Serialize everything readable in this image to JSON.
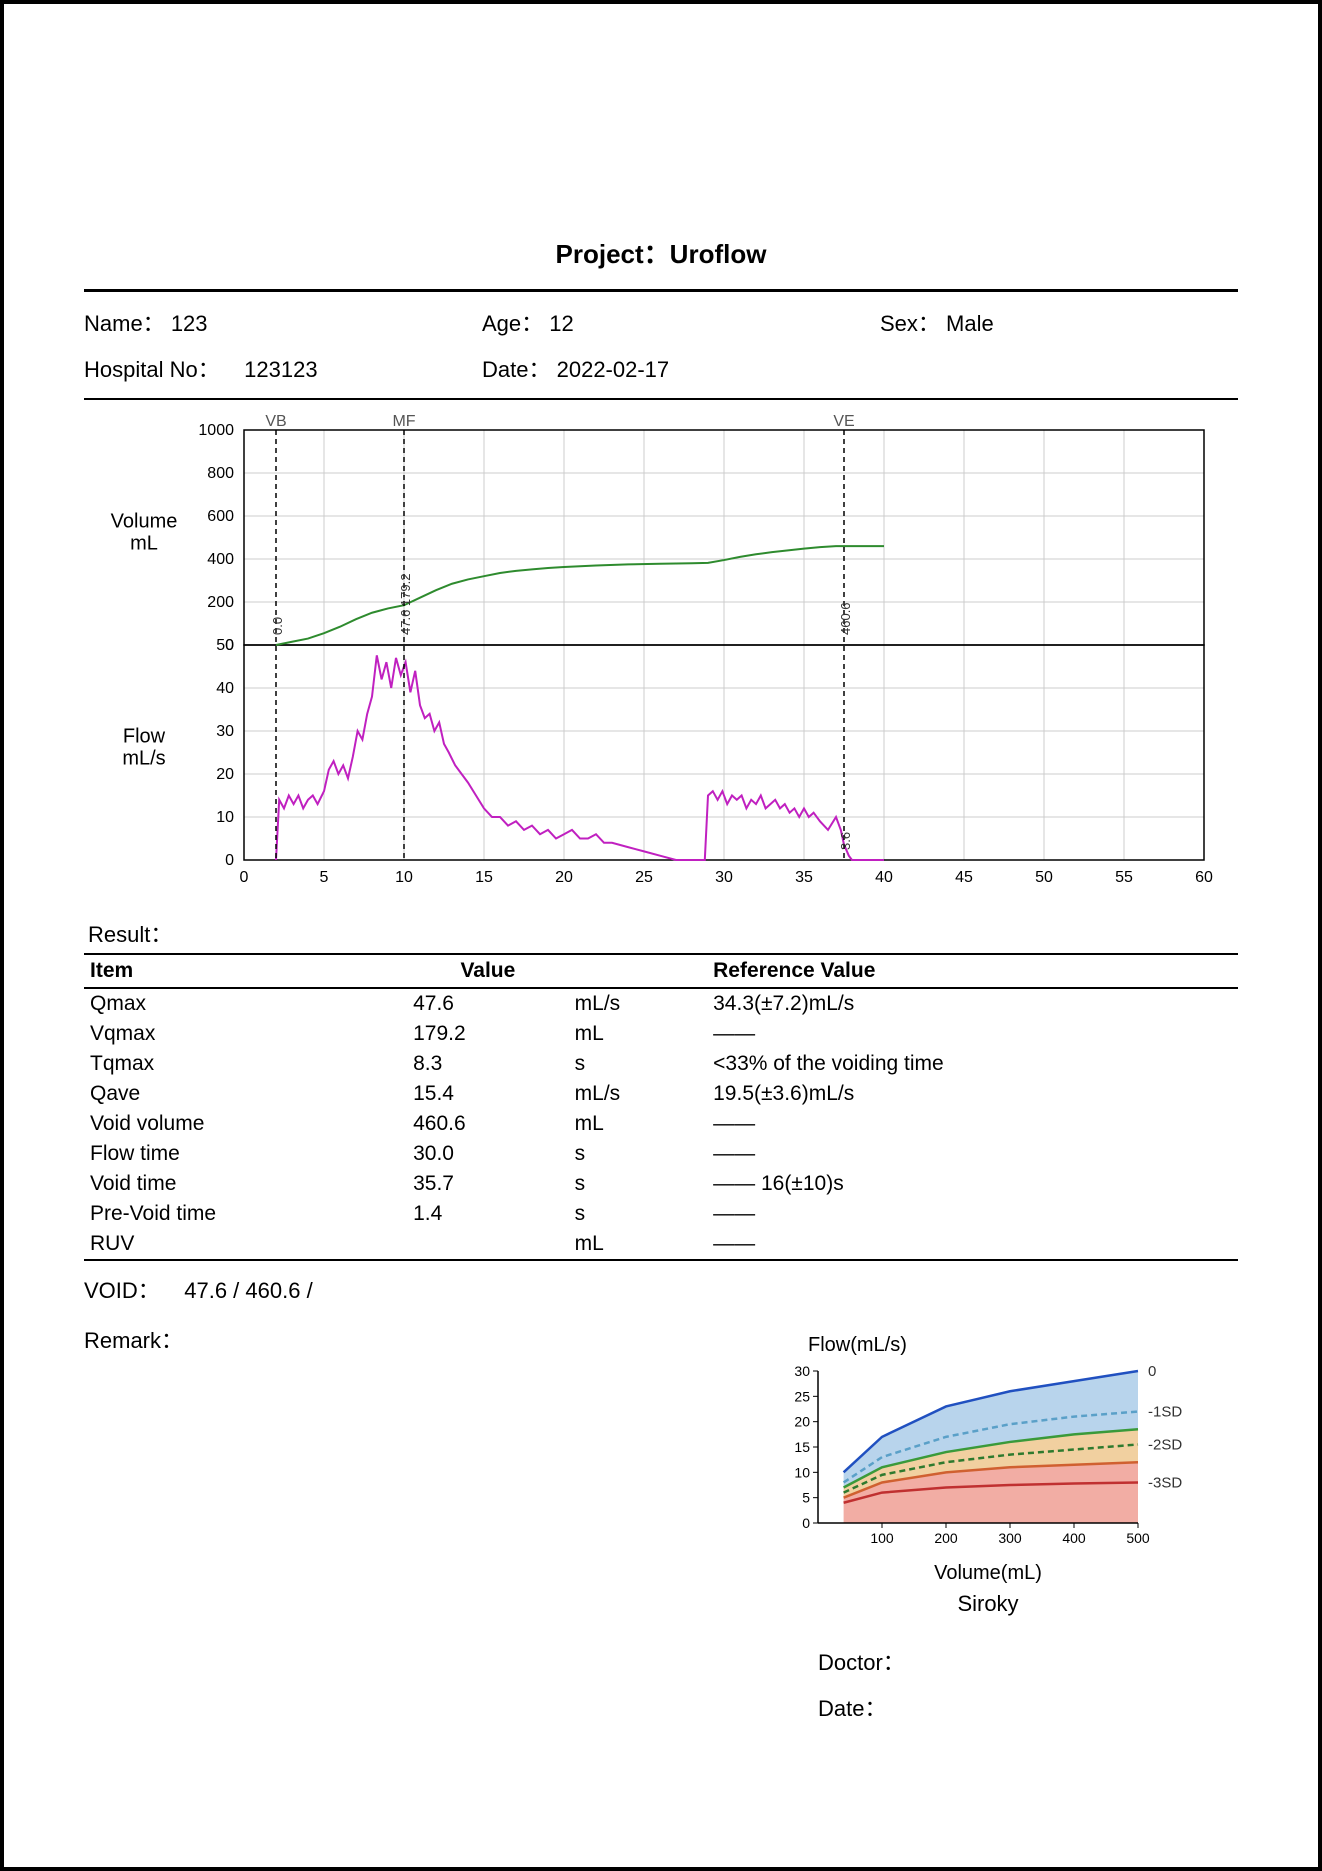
{
  "title": "Project：Uroflow",
  "patient": {
    "name_label": "Name：",
    "name": "123",
    "age_label": "Age：",
    "age": "12",
    "sex_label": "Sex：",
    "sex": "Male",
    "hospital_label": "Hospital No：",
    "hospital": "123123",
    "date_label": "Date：",
    "date": "2022-02-17"
  },
  "main_chart": {
    "volume_axis_label": "Volume\nmL",
    "flow_axis_label": "Flow\nmL/s",
    "x_range": [
      0,
      60
    ],
    "x_tick_step": 5,
    "vol_range": [
      0,
      1000
    ],
    "vol_tick_step": 200,
    "flow_range": [
      0,
      50
    ],
    "flow_tick_step": 10,
    "grid_color": "#cccccc",
    "axis_color": "#000000",
    "tick_font_size": 16,
    "markers": [
      {
        "x": 2.0,
        "label": "VB",
        "annot": "0.0"
      },
      {
        "x": 10.0,
        "label": "MF",
        "annot": "47.6  179.2"
      },
      {
        "x": 37.5,
        "label": "VE",
        "annot": "460.6",
        "annot2": "3.6"
      }
    ],
    "volume_series": {
      "color": "#2e8b2e",
      "width": 2,
      "points": [
        [
          2,
          0
        ],
        [
          3,
          15
        ],
        [
          4,
          30
        ],
        [
          5,
          55
        ],
        [
          6,
          85
        ],
        [
          7,
          120
        ],
        [
          8,
          150
        ],
        [
          9,
          170
        ],
        [
          10,
          185
        ],
        [
          11,
          220
        ],
        [
          12,
          255
        ],
        [
          13,
          285
        ],
        [
          14,
          305
        ],
        [
          15,
          320
        ],
        [
          16,
          335
        ],
        [
          17,
          345
        ],
        [
          18,
          352
        ],
        [
          19,
          358
        ],
        [
          20,
          363
        ],
        [
          22,
          370
        ],
        [
          24,
          375
        ],
        [
          26,
          378
        ],
        [
          28,
          380
        ],
        [
          29,
          382
        ],
        [
          30,
          395
        ],
        [
          31,
          410
        ],
        [
          32,
          422
        ],
        [
          33,
          432
        ],
        [
          34,
          440
        ],
        [
          35,
          448
        ],
        [
          36,
          455
        ],
        [
          37,
          460
        ],
        [
          38,
          460
        ],
        [
          39,
          460
        ],
        [
          40,
          460
        ]
      ]
    },
    "flow_series": {
      "color": "#c020c0",
      "width": 2,
      "points": [
        [
          2,
          0
        ],
        [
          2.2,
          14
        ],
        [
          2.5,
          12
        ],
        [
          2.8,
          15
        ],
        [
          3.1,
          13
        ],
        [
          3.4,
          15
        ],
        [
          3.7,
          12
        ],
        [
          4,
          14
        ],
        [
          4.3,
          15
        ],
        [
          4.6,
          13
        ],
        [
          5,
          16
        ],
        [
          5.3,
          21
        ],
        [
          5.6,
          23
        ],
        [
          5.9,
          20
        ],
        [
          6.2,
          22
        ],
        [
          6.5,
          19
        ],
        [
          6.8,
          24
        ],
        [
          7.1,
          30
        ],
        [
          7.4,
          28
        ],
        [
          7.7,
          34
        ],
        [
          8,
          38
        ],
        [
          8.3,
          47.6
        ],
        [
          8.6,
          42
        ],
        [
          8.9,
          46
        ],
        [
          9.2,
          40
        ],
        [
          9.5,
          47
        ],
        [
          9.8,
          43
        ],
        [
          10.1,
          46
        ],
        [
          10.4,
          39
        ],
        [
          10.7,
          44
        ],
        [
          11,
          36
        ],
        [
          11.3,
          33
        ],
        [
          11.6,
          34
        ],
        [
          11.9,
          30
        ],
        [
          12.2,
          32
        ],
        [
          12.5,
          27
        ],
        [
          12.8,
          25
        ],
        [
          13.2,
          22
        ],
        [
          13.6,
          20
        ],
        [
          14,
          18
        ],
        [
          14.5,
          15
        ],
        [
          15,
          12
        ],
        [
          15.5,
          10
        ],
        [
          16,
          10
        ],
        [
          16.5,
          8
        ],
        [
          17,
          9
        ],
        [
          17.5,
          7
        ],
        [
          18,
          8
        ],
        [
          18.5,
          6
        ],
        [
          19,
          7
        ],
        [
          19.5,
          5
        ],
        [
          20,
          6
        ],
        [
          20.5,
          7
        ],
        [
          21,
          5
        ],
        [
          21.5,
          5
        ],
        [
          22,
          6
        ],
        [
          22.5,
          4
        ],
        [
          23,
          4
        ],
        [
          24,
          3
        ],
        [
          25,
          2
        ],
        [
          26,
          1
        ],
        [
          27,
          0
        ],
        [
          28,
          0
        ],
        [
          28.8,
          0
        ],
        [
          29,
          15
        ],
        [
          29.3,
          16
        ],
        [
          29.6,
          14
        ],
        [
          29.9,
          16
        ],
        [
          30.2,
          13
        ],
        [
          30.5,
          15
        ],
        [
          30.8,
          14
        ],
        [
          31.1,
          15
        ],
        [
          31.4,
          12
        ],
        [
          31.7,
          14
        ],
        [
          32,
          13
        ],
        [
          32.3,
          15
        ],
        [
          32.6,
          12
        ],
        [
          32.9,
          13
        ],
        [
          33.2,
          14
        ],
        [
          33.5,
          12
        ],
        [
          33.8,
          13
        ],
        [
          34.1,
          11
        ],
        [
          34.4,
          12
        ],
        [
          34.7,
          10
        ],
        [
          35,
          12
        ],
        [
          35.3,
          10
        ],
        [
          35.6,
          11
        ],
        [
          36,
          9
        ],
        [
          36.5,
          7
        ],
        [
          37,
          10
        ],
        [
          37.3,
          7
        ],
        [
          37.5,
          3.6
        ],
        [
          37.8,
          1
        ],
        [
          38,
          0
        ],
        [
          40,
          0
        ]
      ]
    }
  },
  "results": {
    "header": "Result：",
    "columns": [
      "Item",
      "Value",
      "",
      "Reference Value"
    ],
    "rows": [
      [
        "Qmax",
        "47.6",
        "mL/s",
        "34.3(±7.2)mL/s"
      ],
      [
        "Vqmax",
        "179.2",
        "mL",
        "——"
      ],
      [
        "Tqmax",
        "8.3",
        "s",
        "<33% of the voiding time"
      ],
      [
        "Qave",
        "15.4",
        "mL/s",
        "19.5(±3.6)mL/s"
      ],
      [
        "Void volume",
        "460.6",
        "mL",
        "——"
      ],
      [
        "Flow time",
        "30.0",
        "s",
        "——"
      ],
      [
        "Void time",
        "35.7",
        "s",
        "——   16(±10)s"
      ],
      [
        "Pre-Void time",
        "1.4",
        "s",
        "——"
      ],
      [
        "RUV",
        "",
        "mL",
        "——"
      ]
    ]
  },
  "void_line": {
    "label": "VOID：",
    "value": "47.6 /   460.6   /"
  },
  "remark_label": "Remark：",
  "siroky": {
    "title": "Flow(mL/s)",
    "x_label": "Volume(mL)",
    "name": "Siroky",
    "x_range": [
      0,
      500
    ],
    "x_ticks": [
      100,
      200,
      300,
      400,
      500
    ],
    "y_range": [
      0,
      30
    ],
    "y_ticks": [
      0,
      5,
      10,
      15,
      20,
      25,
      30
    ],
    "bands": [
      {
        "fill": "#b8d4ec"
      },
      {
        "fill": "#e8b060"
      },
      {
        "fill": "#e86a5a"
      },
      {
        "fill": "#ffffff"
      }
    ],
    "curves": [
      {
        "label": "0",
        "color": "#2050c0",
        "dash": "",
        "pts": [
          [
            40,
            10
          ],
          [
            100,
            17
          ],
          [
            200,
            23
          ],
          [
            300,
            26
          ],
          [
            400,
            28
          ],
          [
            500,
            30
          ]
        ]
      },
      {
        "label": "-1SD",
        "color": "#5aa0c8",
        "dash": "6,4",
        "pts": [
          [
            40,
            8
          ],
          [
            100,
            13
          ],
          [
            200,
            17
          ],
          [
            300,
            19.5
          ],
          [
            400,
            21
          ],
          [
            500,
            22
          ]
        ]
      },
      {
        "label": "",
        "color": "#3a9a3a",
        "dash": "",
        "pts": [
          [
            40,
            7
          ],
          [
            100,
            11
          ],
          [
            200,
            14
          ],
          [
            300,
            16
          ],
          [
            400,
            17.5
          ],
          [
            500,
            18.5
          ]
        ]
      },
      {
        "label": "-2SD",
        "color": "#2e7a2e",
        "dash": "6,4",
        "pts": [
          [
            40,
            6
          ],
          [
            100,
            9.5
          ],
          [
            200,
            12
          ],
          [
            300,
            13.5
          ],
          [
            400,
            14.5
          ],
          [
            500,
            15.5
          ]
        ]
      },
      {
        "label": "",
        "color": "#d06030",
        "dash": "",
        "pts": [
          [
            40,
            5
          ],
          [
            100,
            8
          ],
          [
            200,
            10
          ],
          [
            300,
            11
          ],
          [
            400,
            11.5
          ],
          [
            500,
            12
          ]
        ]
      },
      {
        "label": "-3SD",
        "color": "#c03030",
        "dash": "",
        "pts": [
          [
            40,
            4
          ],
          [
            100,
            6
          ],
          [
            200,
            7
          ],
          [
            300,
            7.5
          ],
          [
            400,
            7.8
          ],
          [
            500,
            8
          ]
        ]
      }
    ],
    "tick_font_size": 14
  },
  "signoff": {
    "doctor_label": "Doctor：",
    "date_label": "Date："
  }
}
